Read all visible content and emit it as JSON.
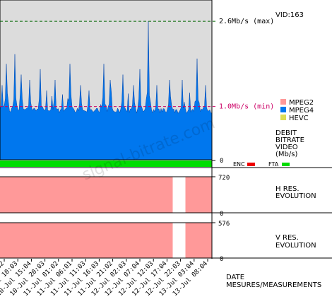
{
  "chart_data": {
    "type": "area",
    "vid": "VID:163",
    "watermark": "signal-bitrate.com",
    "ylim_mbps": [
      0,
      3.0
    ],
    "max_line": {
      "value": 2.6,
      "label": "2.6Mb/s (max)"
    },
    "min_line": {
      "value": 1.0,
      "label": "1.0Mb/s (min)"
    },
    "legend": [
      {
        "name": "MPEG2",
        "color": "#ff9999"
      },
      {
        "name": "MPEG4",
        "color": "#0077ee"
      },
      {
        "name": "HEVC",
        "color": "#dddd55"
      }
    ],
    "bitrate_panel_title": [
      "DEBIT",
      "BITRATE",
      "VIDEO",
      "(Mb/s)"
    ],
    "baseline_mbps": 0.85,
    "baseline_label": "0",
    "bitrate_peaks": [
      {
        "t": 0.01,
        "v": 1.4
      },
      {
        "t": 0.03,
        "v": 1.8
      },
      {
        "t": 0.07,
        "v": 1.9
      },
      {
        "t": 0.1,
        "v": 1.6
      },
      {
        "t": 0.14,
        "v": 1.5
      },
      {
        "t": 0.19,
        "v": 1.7
      },
      {
        "t": 0.22,
        "v": 1.3
      },
      {
        "t": 0.26,
        "v": 1.5
      },
      {
        "t": 0.33,
        "v": 1.8
      },
      {
        "t": 0.38,
        "v": 1.4
      },
      {
        "t": 0.42,
        "v": 1.3
      },
      {
        "t": 0.49,
        "v": 1.8
      },
      {
        "t": 0.52,
        "v": 1.5
      },
      {
        "t": 0.58,
        "v": 1.6
      },
      {
        "t": 0.63,
        "v": 1.4
      },
      {
        "t": 0.66,
        "v": 1.7
      },
      {
        "t": 0.7,
        "v": 2.6
      },
      {
        "t": 0.74,
        "v": 1.4
      },
      {
        "t": 0.8,
        "v": 1.5
      },
      {
        "t": 0.86,
        "v": 1.5
      },
      {
        "t": 0.93,
        "v": 1.9
      },
      {
        "t": 0.97,
        "v": 1.4
      }
    ],
    "flags": {
      "enc": {
        "label": "ENC",
        "color": "#ee0000"
      },
      "fta": {
        "label": "FTA",
        "color": "#00dd00"
      }
    },
    "h_res": {
      "title": [
        "H RES.",
        "EVOLUTION"
      ],
      "value_label": "720",
      "zero_label": "0",
      "value": 720
    },
    "v_res": {
      "title": [
        "V RES.",
        "EVOLUTION"
      ],
      "value_label": "576",
      "zero_label": "0",
      "value": 576
    },
    "res_gap": [
      0.815,
      0.875
    ],
    "x_ticks": [
      "10-Jul 05:02",
      "10-Jul 10:03",
      "10-Jul 15:04",
      "10-Jul 20:03",
      "11-Jul 01:02",
      "11-Jul 06:01",
      "11-Jul 11:03",
      "11-Jul 16:03",
      "11-Jul 21:02",
      "12-Jul 02:03",
      "12-Jul 07:04",
      "12-Jul 12:03",
      "12-Jul 17:04",
      "12-Jul 22:03",
      "13-Jul 03:04",
      "13-Jul 08:04"
    ],
    "xlabel": [
      "DATE",
      "MESURES/MEASUREMENTS"
    ]
  }
}
